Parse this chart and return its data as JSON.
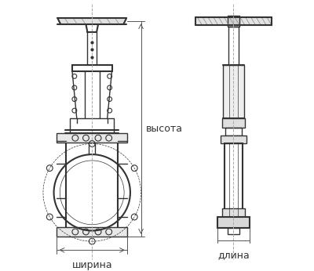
{
  "bg_color": "#ffffff",
  "line_color": "#333333",
  "label_color": "#333333",
  "label_shirina": "ширина",
  "label_dlina": "длина",
  "label_vysota": "высота",
  "fig_width": 4.0,
  "fig_height": 3.46,
  "dpi": 100
}
